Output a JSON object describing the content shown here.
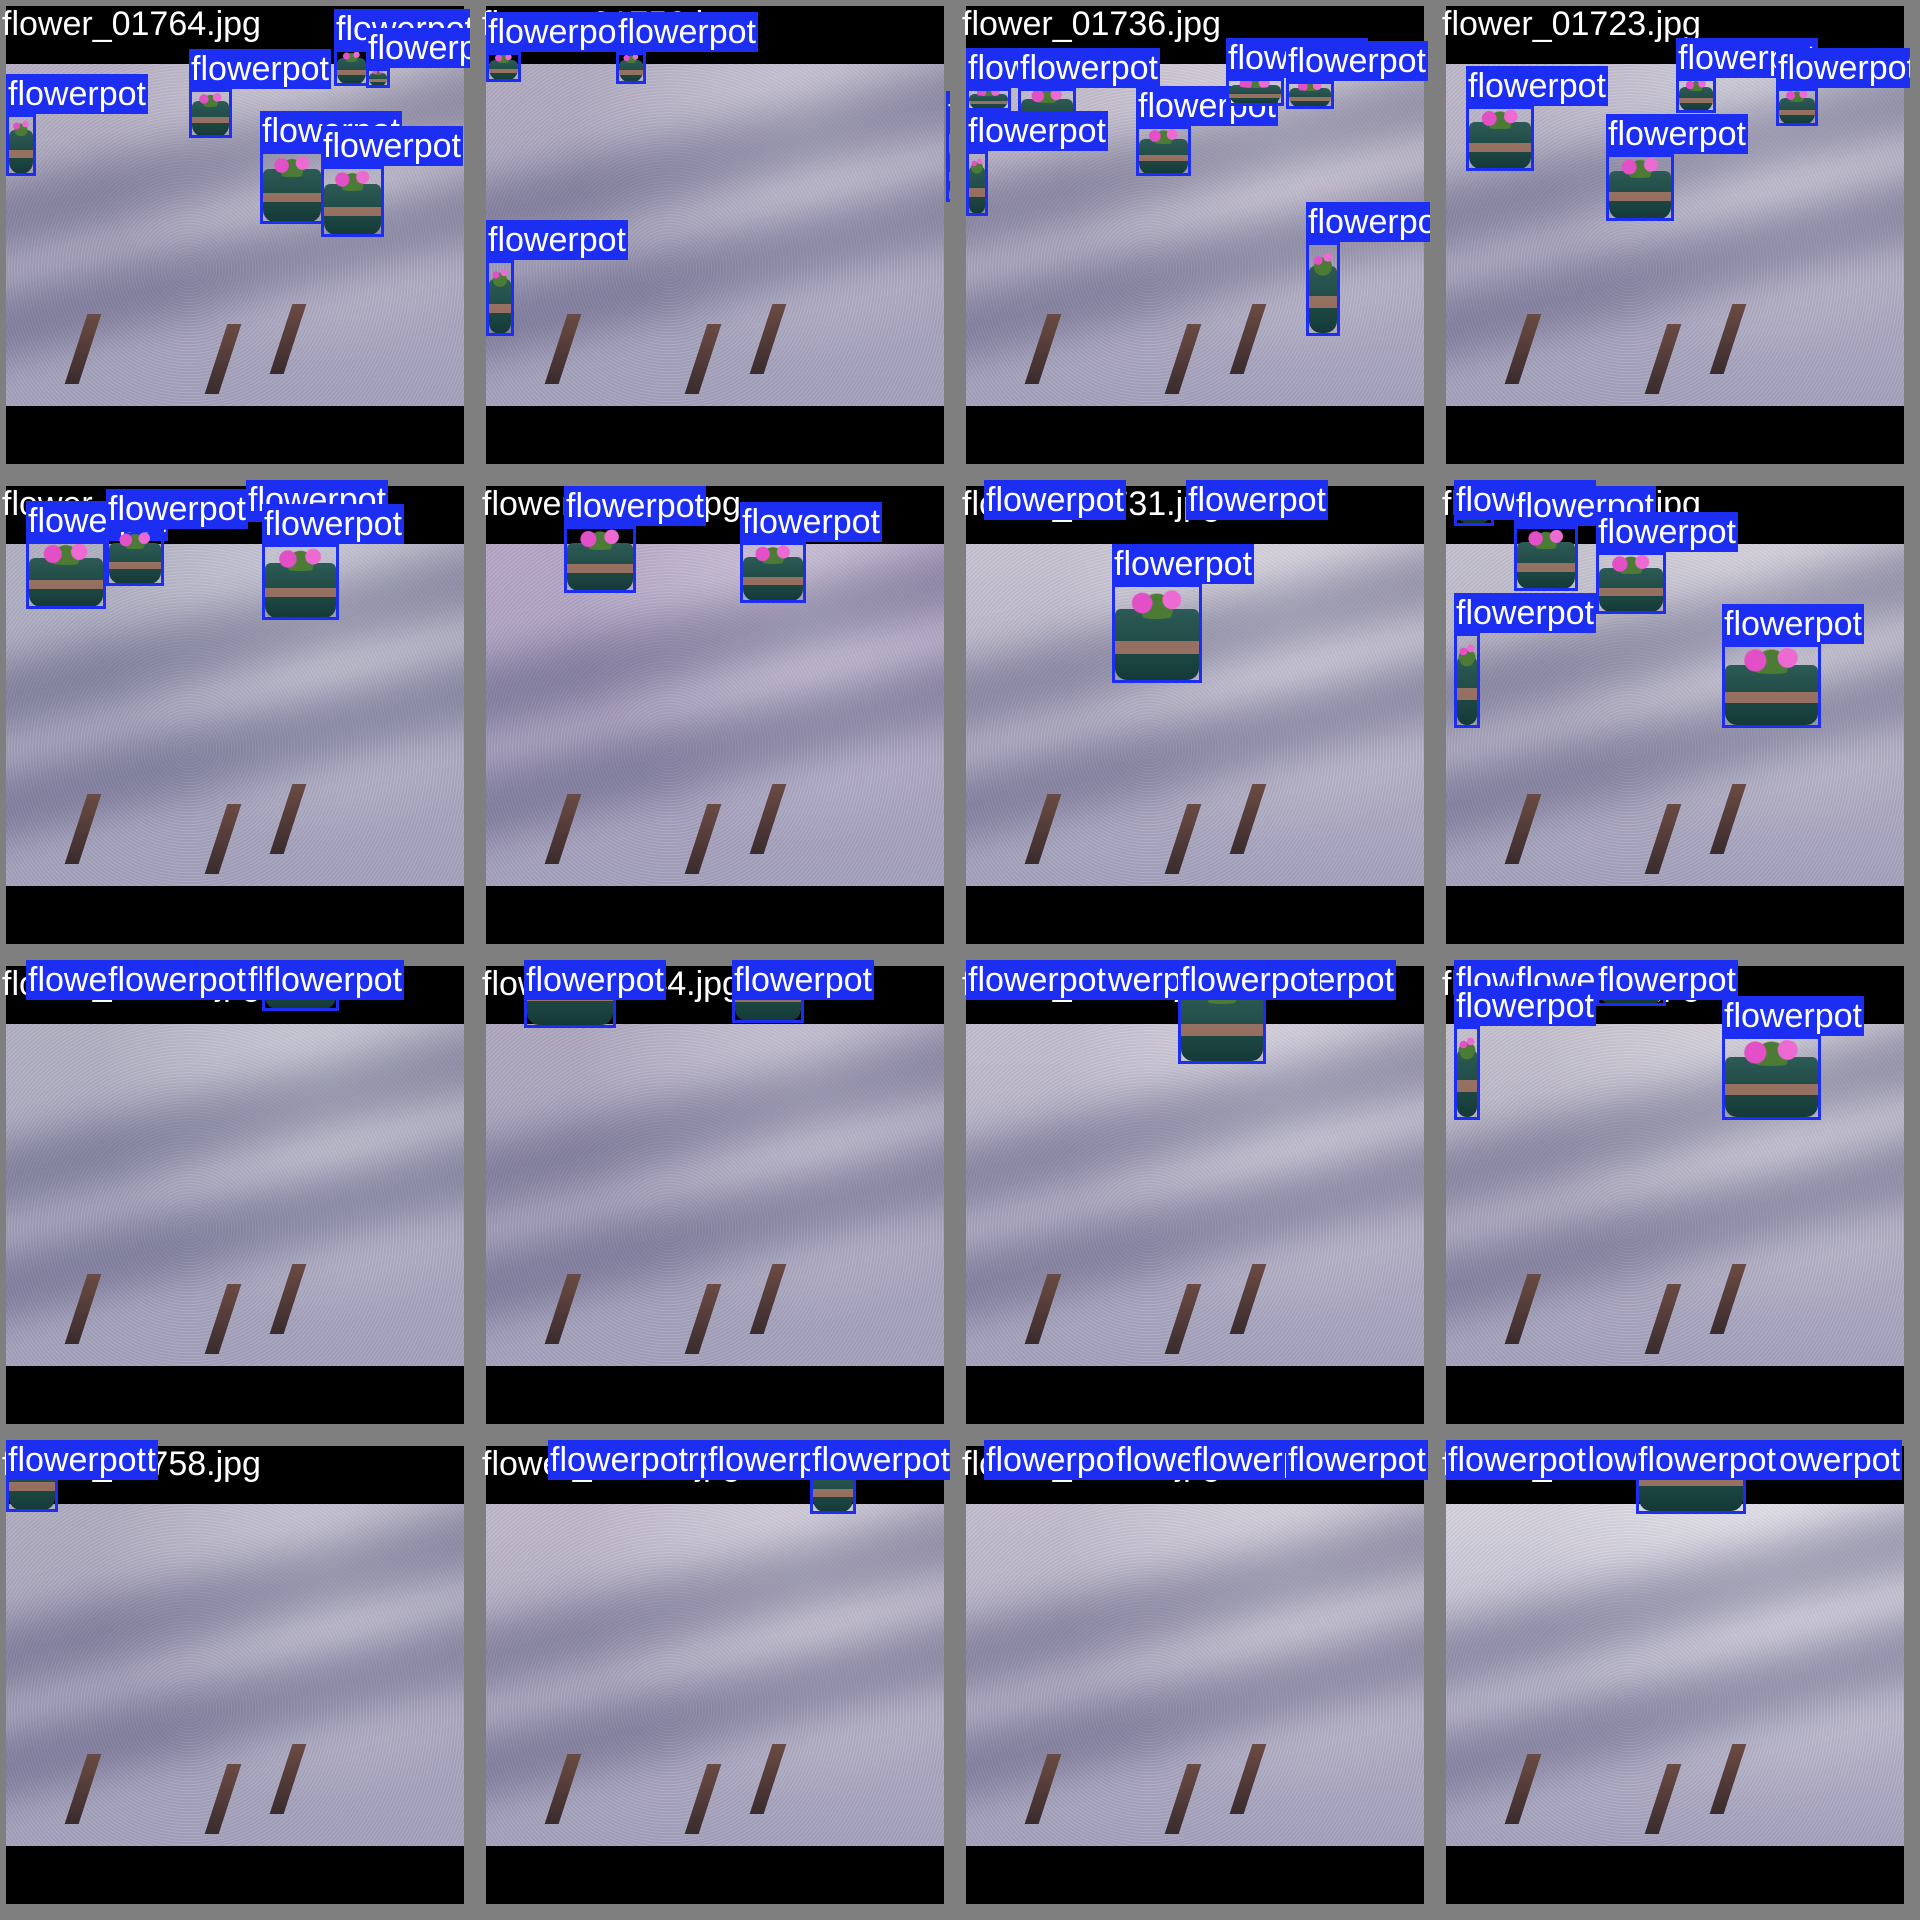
{
  "colors": {
    "box": "#1c2ef2",
    "label_text": "#ffffff",
    "frame": "#7f7f7f",
    "letterbox": "#000000",
    "pavement": "#a7a4c0"
  },
  "label_text": "flowerpot",
  "tiles": [
    {
      "filename": "flower_01764.jpg",
      "photo_tint": "#b9b3c6",
      "detections": [
        [
          0,
          108,
          30,
          170
        ],
        [
          183,
          83,
          226,
          132
        ],
        [
          254,
          145,
          318,
          218
        ],
        [
          315,
          160,
          378,
          231
        ],
        [
          328,
          43,
          363,
          80
        ],
        [
          360,
          62,
          384,
          82
        ]
      ]
    },
    {
      "filename": "flower_01756.jpg",
      "photo_tint": "#b4aec4",
      "detections": [
        [
          0,
          46,
          35,
          76
        ],
        [
          130,
          46,
          160,
          78
        ],
        [
          460,
          125,
          530,
          196
        ],
        [
          0,
          254,
          28,
          330
        ]
      ]
    },
    {
      "filename": "flower_01736.jpg",
      "photo_tint": "#c7c0cf",
      "detections": [
        [
          0,
          82,
          45,
          105
        ],
        [
          52,
          82,
          110,
          125
        ],
        [
          170,
          120,
          225,
          170
        ],
        [
          260,
          72,
          318,
          100
        ],
        [
          320,
          75,
          368,
          103
        ],
        [
          340,
          236,
          374,
          330
        ],
        [
          0,
          145,
          22,
          210
        ]
      ]
    },
    {
      "filename": "flower_01723.jpg",
      "photo_tint": "#c1bccd",
      "detections": [
        [
          20,
          100,
          88,
          165
        ],
        [
          160,
          148,
          228,
          215
        ],
        [
          230,
          72,
          270,
          107
        ],
        [
          330,
          82,
          372,
          120
        ]
      ]
    },
    {
      "filename": "flower_01763.jpg",
      "photo_tint": "#b5b4c6",
      "detections": [
        [
          20,
          535,
          100,
          603
        ],
        [
          100,
          523,
          158,
          580
        ],
        [
          240,
          478,
          285,
          516
        ],
        [
          256,
          538,
          333,
          614
        ]
      ]
    },
    {
      "filename": "flower_01747.jpg",
      "photo_tint": "#b8a9c9",
      "detections": [
        [
          78,
          520,
          150,
          587
        ],
        [
          254,
          536,
          320,
          597
        ]
      ]
    },
    {
      "filename": "flower_01731.jpg",
      "photo_tint": "#cbc6d4",
      "detections": [
        [
          18,
          446,
          50,
          470
        ],
        [
          220,
          468,
          265,
          513
        ],
        [
          146,
          578,
          236,
          677
        ]
      ]
    },
    {
      "filename": "flower_01720.jpg",
      "photo_tint": "#c8c4d1",
      "detections": [
        [
          8,
          464,
          48,
          520
        ],
        [
          68,
          520,
          132,
          585
        ],
        [
          150,
          546,
          220,
          608
        ],
        [
          8,
          627,
          34,
          722
        ],
        [
          276,
          638,
          375,
          722
        ]
      ]
    },
    {
      "filename": "flower_01761.jpg",
      "photo_tint": "#b5b4c6",
      "detections": [
        [
          20,
          926,
          100,
          994
        ],
        [
          100,
          914,
          158,
          971
        ],
        [
          240,
          868,
          285,
          906
        ],
        [
          256,
          930,
          333,
          1005
        ]
      ]
    },
    {
      "filename": "flower_01744.jpg",
      "photo_tint": "#b2abc3",
      "detections": [
        [
          38,
          932,
          130,
          1022
        ],
        [
          246,
          946,
          318,
          1017
        ]
      ]
    },
    {
      "filename": "flower_01725.jpg",
      "photo_tint": "#c6c1d2",
      "detections": [
        [
          0,
          838,
          44,
          872
        ],
        [
          104,
          838,
          134,
          856
        ],
        [
          288,
          870,
          340,
          918
        ],
        [
          0,
          915,
          32,
          988
        ],
        [
          212,
          964,
          300,
          1058
        ]
      ]
    },
    {
      "filename": "flower_01719.jpg",
      "photo_tint": "#c8c4d1",
      "detections": [
        [
          8,
          856,
          48,
          912
        ],
        [
          68,
          912,
          132,
          977
        ],
        [
          150,
          938,
          220,
          1000
        ],
        [
          8,
          1020,
          34,
          1114
        ],
        [
          276,
          1030,
          375,
          1114
        ]
      ]
    },
    {
      "filename": "flower_01758.jpg",
      "photo_tint": "#b3afc3",
      "detections": [
        [
          10,
          1270,
          80,
          1325
        ],
        [
          0,
          1362,
          20,
          1418
        ],
        [
          0,
          1436,
          52,
          1506
        ]
      ]
    },
    {
      "filename": "flower_01738.jpg",
      "photo_tint": "#c2bbcd",
      "detections": [
        [
          120,
          1238,
          160,
          1280
        ],
        [
          220,
          1238,
          258,
          1276
        ],
        [
          62,
          1330,
          144,
          1406
        ],
        [
          324,
          1450,
          370,
          1508
        ]
      ]
    },
    {
      "filename": "flower_01724.jpg",
      "photo_tint": "#c6c0d0",
      "detections": [
        [
          18,
          1278,
          84,
          1338
        ],
        [
          148,
          1320,
          216,
          1388
        ],
        [
          224,
          1240,
          262,
          1278
        ],
        [
          320,
          1258,
          368,
          1296
        ]
      ]
    },
    {
      "filename": "flower_01708.jpg",
      "photo_tint": "#d9d6e1",
      "detections": [
        [
          10,
          1230,
          60,
          1262
        ],
        [
          130,
          1230,
          164,
          1256
        ],
        [
          0,
          1312,
          20,
          1383
        ],
        [
          314,
          1300,
          374,
          1340
        ],
        [
          190,
          1412,
          300,
          1508
        ]
      ]
    }
  ]
}
